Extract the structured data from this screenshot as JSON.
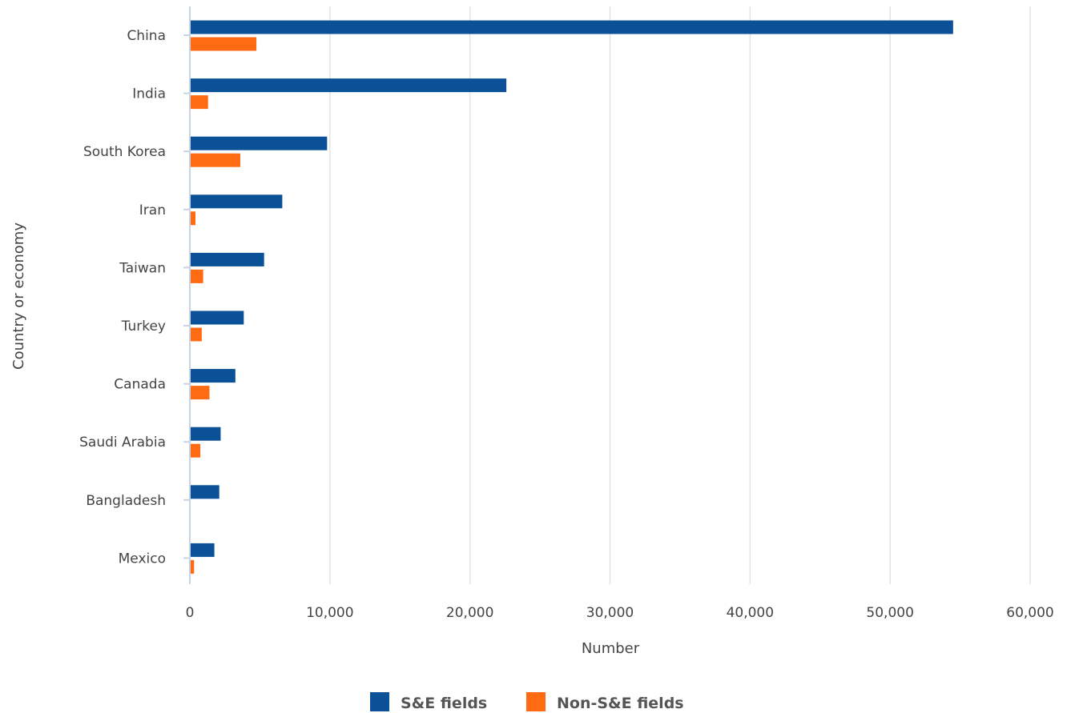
{
  "chart_data": {
    "type": "bar",
    "orientation": "horizontal",
    "categories": [
      "China",
      "India",
      "South Korea",
      "Iran",
      "Taiwan",
      "Turkey",
      "Canada",
      "Saudi Arabia",
      "Bangladesh",
      "Mexico"
    ],
    "series": [
      {
        "name": "S&E fields",
        "color": "#0a5197",
        "values": [
          54500,
          22600,
          9800,
          6600,
          5300,
          3850,
          3250,
          2200,
          2100,
          1750
        ]
      },
      {
        "name": "Non-S&E fields",
        "color": "#ff6b12",
        "values": [
          4750,
          1300,
          3600,
          400,
          950,
          850,
          1400,
          750,
          0,
          300
        ]
      }
    ],
    "xlabel": "Number",
    "ylabel": "Country or economy",
    "xlim": [
      0,
      60000
    ],
    "xticks": [
      0,
      10000,
      20000,
      30000,
      40000,
      50000,
      60000
    ],
    "xtick_labels": [
      "0",
      "10,000",
      "20,000",
      "30,000",
      "40,000",
      "50,000",
      "60,000"
    ],
    "grid": true,
    "legend_position": "bottom-center"
  }
}
